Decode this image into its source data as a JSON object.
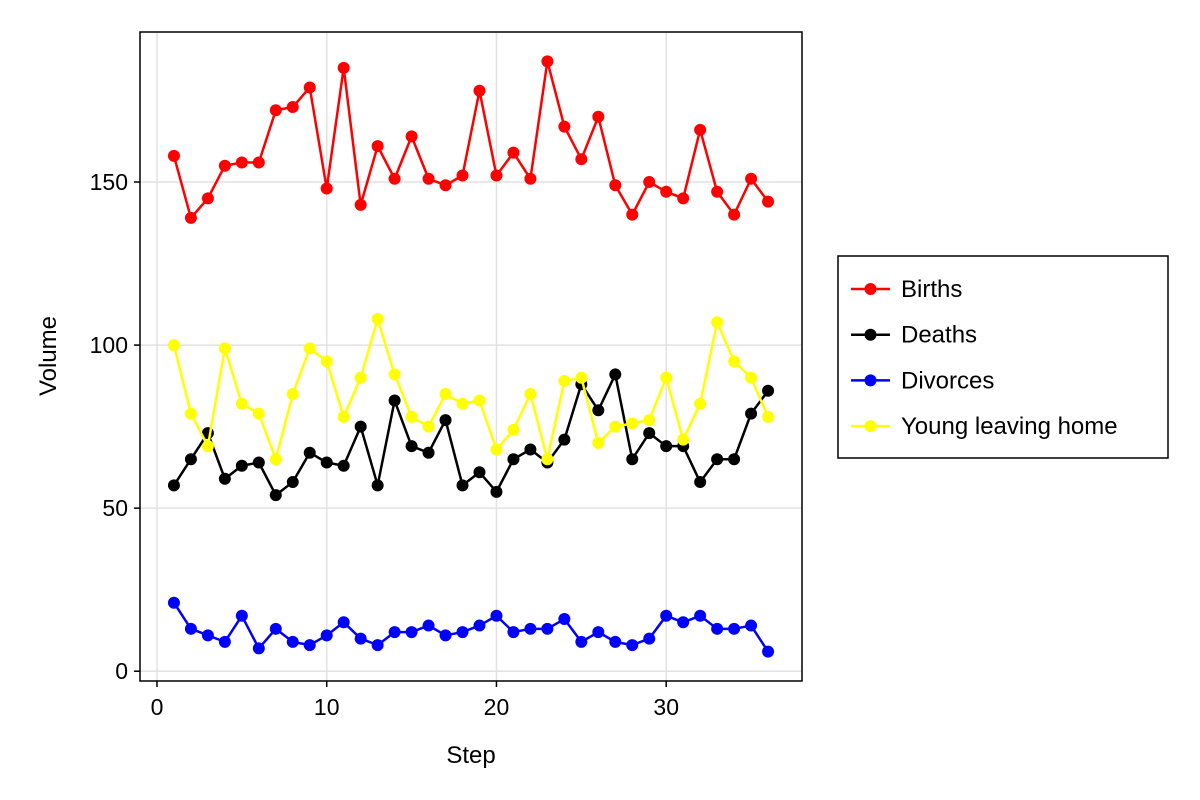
{
  "chart_data": {
    "type": "line",
    "title": "",
    "xlabel": "Step",
    "ylabel": "Volume",
    "xlim": [
      -1,
      38
    ],
    "ylim": [
      -3,
      196
    ],
    "x_ticks": [
      0,
      10,
      20,
      30
    ],
    "y_ticks": [
      0,
      50,
      100,
      150
    ],
    "grid": true,
    "legend_position": "right",
    "x": [
      1,
      2,
      3,
      4,
      5,
      6,
      7,
      8,
      9,
      10,
      11,
      12,
      13,
      14,
      15,
      16,
      17,
      18,
      19,
      20,
      21,
      22,
      23,
      24,
      25,
      26,
      27,
      28,
      29,
      30,
      31,
      32,
      33,
      34,
      35,
      36
    ],
    "series": [
      {
        "name": "Births",
        "color": "#ff0000",
        "values": [
          158,
          139,
          145,
          155,
          156,
          156,
          172,
          173,
          179,
          148,
          185,
          143,
          161,
          151,
          164,
          151,
          149,
          152,
          178,
          152,
          159,
          151,
          187,
          167,
          157,
          170,
          149,
          140,
          150,
          147,
          145,
          166,
          147,
          140,
          151,
          144
        ]
      },
      {
        "name": "Deaths",
        "color": "#000000",
        "values": [
          57,
          65,
          73,
          59,
          63,
          64,
          54,
          58,
          67,
          64,
          63,
          75,
          57,
          83,
          69,
          67,
          77,
          57,
          61,
          55,
          65,
          68,
          64,
          71,
          88,
          80,
          91,
          65,
          73,
          69,
          69,
          58,
          65,
          65,
          79,
          86
        ]
      },
      {
        "name": "Divorces",
        "color": "#0000ff",
        "values": [
          21,
          13,
          11,
          9,
          17,
          7,
          13,
          9,
          8,
          11,
          15,
          10,
          8,
          12,
          12,
          14,
          11,
          12,
          14,
          17,
          12,
          13,
          13,
          16,
          9,
          12,
          9,
          8,
          10,
          17,
          15,
          17,
          13,
          13,
          14,
          6
        ]
      },
      {
        "name": "Young leaving home",
        "color": "#ffff00",
        "values": [
          100,
          79,
          69,
          99,
          82,
          79,
          65,
          85,
          99,
          95,
          78,
          90,
          108,
          91,
          78,
          75,
          85,
          82,
          83,
          68,
          74,
          85,
          65,
          89,
          90,
          70,
          75,
          76,
          77,
          90,
          71,
          82,
          107,
          95,
          90,
          78
        ]
      }
    ]
  }
}
